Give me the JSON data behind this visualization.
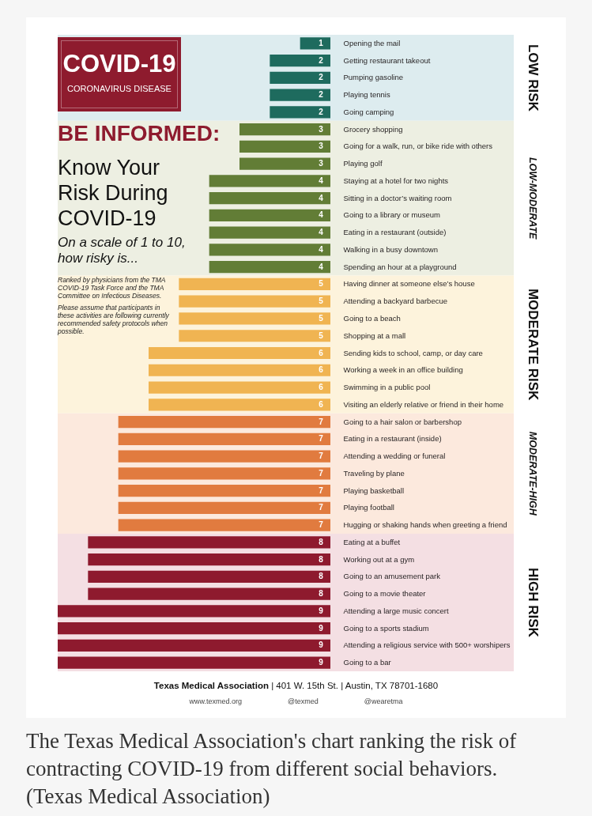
{
  "chart_data": {
    "type": "bar",
    "orientation": "horizontal",
    "title": "BE INFORMED:",
    "subtitle": "Know Your Risk During COVID-19",
    "categories": [
      "Opening the mail",
      "Getting restaurant takeout",
      "Pumping gasoline",
      "Playing tennis",
      "Going camping",
      "Grocery shopping",
      "Going for a walk, run, or bike ride with others",
      "Playing golf",
      "Staying at a hotel for two nights",
      "Sitting in a doctor’s waiting room",
      "Going to a library or museum",
      "Eating in a restaurant (outside)",
      "Walking in a busy downtown",
      "Spending an hour at a playground",
      "Having dinner at someone else’s house",
      "Attending a backyard barbecue",
      "Going to a beach",
      "Shopping at a mall",
      "Sending kids to school, camp, or day care",
      "Working a week in an office building",
      "Swimming in a public pool",
      "Visiting an elderly relative or friend in their home",
      "Going to a hair salon or barbershop",
      "Eating in a restaurant (inside)",
      "Attending a wedding or funeral",
      "Traveling by plane",
      "Playing basketball",
      "Playing football",
      "Hugging or shaking hands when greeting a friend",
      "Eating at a buffet",
      "Working out at a gym",
      "Going to an amusement park",
      "Going to a movie theater",
      "Attending a large music concert",
      "Going to a sports stadium",
      "Attending a religious service with 500+ worshipers",
      "Going to a bar"
    ],
    "values": [
      1,
      2,
      2,
      2,
      2,
      3,
      3,
      3,
      4,
      4,
      4,
      4,
      4,
      4,
      5,
      5,
      5,
      5,
      6,
      6,
      6,
      6,
      7,
      7,
      7,
      7,
      7,
      7,
      7,
      8,
      8,
      8,
      8,
      9,
      9,
      9,
      9
    ],
    "colors": [
      "#1e6b5e",
      "#1e6b5e",
      "#1e6b5e",
      "#1e6b5e",
      "#1e6b5e",
      "#627d36",
      "#627d36",
      "#627d36",
      "#627d36",
      "#627d36",
      "#627d36",
      "#627d36",
      "#627d36",
      "#627d36",
      "#f0b452",
      "#f0b452",
      "#f0b452",
      "#f0b452",
      "#f0b452",
      "#f0b452",
      "#f0b452",
      "#f0b452",
      "#e17b3f",
      "#e17b3f",
      "#e17b3f",
      "#e17b3f",
      "#e17b3f",
      "#e17b3f",
      "#e17b3f",
      "#8e1a2e",
      "#8e1a2e",
      "#8e1a2e",
      "#8e1a2e",
      "#8e1a2e",
      "#8e1a2e",
      "#8e1a2e",
      "#8e1a2e"
    ],
    "tick_labels": "y",
    "data_labels": true,
    "bands": [
      {
        "axis": "y",
        "from": "Opening the mail",
        "to": "Going camping",
        "label": "LOW RISK",
        "color": "#ddecef"
      },
      {
        "axis": "y",
        "from": "Grocery shopping",
        "to": "Spending an hour at a playground",
        "label": "LOW-MODERATE",
        "color": "#edefe2"
      },
      {
        "axis": "y",
        "from": "Having dinner at someone else’s house",
        "to": "Visiting an elderly relative or friend in their home",
        "label": "MODERATE RISK",
        "color": "#fdf3dc"
      },
      {
        "axis": "y",
        "from": "Going to a hair salon or barbershop",
        "to": "Hugging or shaking hands when greeting a friend",
        "label": "MODERATE-HIGH",
        "color": "#fce9dd"
      },
      {
        "axis": "y",
        "from": "Eating at a buffet",
        "to": "Going to a bar",
        "label": "HIGH RISK",
        "color": "#f4dfe3"
      }
    ],
    "annotations": [
      "COVID-19",
      "CORONAVIRUS DISEASE",
      "On a scale of 1 to 10, how risky is...",
      "Ranked by physicians from the TMA COVID-19 Task Force and the TMA Committee on Infectious Diseases.",
      "Please assume that participants in these activities are following currently recommended safety protocols when possible.",
      "Texas Medical Association | 401 W. 15th St. | Austin, TX 78701-1680",
      "www.texmed.org",
      "@texmed",
      "@wearetma",
      "The Texas Medical Association's chart ranking the risk of contracting COVID-19 from different social behaviors. (Texas Medical Association)"
    ]
  }
}
